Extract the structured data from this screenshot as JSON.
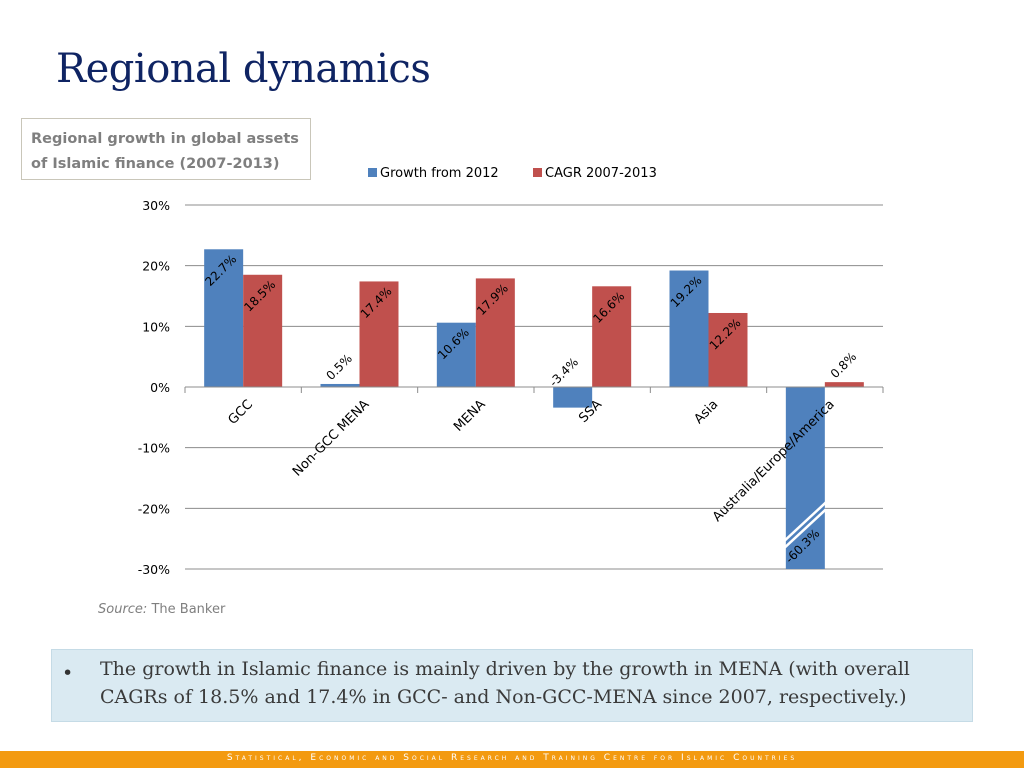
{
  "slide": {
    "title": "Regional dynamics",
    "caption_line1": "Regional growth in global assets",
    "caption_line2": "of Islamic finance (2007-2013)",
    "source_label": "Source:",
    "source_value": " The Banker",
    "note": {
      "bullet": "•",
      "text": "The growth in Islamic finance is mainly driven by the growth in MENA (with overall CAGRs of 18.5% and 17.4% in GCC- and Non-GCC-MENA since 2007, respectively.)"
    },
    "footer": "Statistical, Economic and Social Research and Training Centre for Islamic Countries"
  },
  "chart_data": {
    "type": "bar",
    "title": "Regional growth in global assets of Islamic finance (2007-2013)",
    "xlabel": "",
    "ylabel": "",
    "categories": [
      "GCC",
      "Non-GCC MENA",
      "MENA",
      "SSA",
      "Asia",
      "Australia/Europe/America"
    ],
    "series": [
      {
        "name": "Growth from 2012",
        "color": "#4f81bd",
        "values": [
          22.7,
          0.5,
          10.6,
          -3.4,
          19.2,
          -60.3
        ],
        "labels": [
          "22.7%",
          "0.5%",
          "10.6%",
          "-3.4%",
          "19.2%",
          "-60.3%"
        ]
      },
      {
        "name": "CAGR 2007-2013",
        "color": "#c0504d",
        "values": [
          18.5,
          17.4,
          17.9,
          16.6,
          12.2,
          0.8
        ],
        "labels": [
          "18.5%",
          "17.4%",
          "17.9%",
          "16.6%",
          "12.2%",
          "0.8%"
        ]
      }
    ],
    "ylim": [
      -30,
      30
    ],
    "yticks": [
      30,
      20,
      10,
      0,
      -10,
      -20,
      -30
    ],
    "ytick_labels": [
      "30%",
      "20%",
      "10%",
      "0%",
      "-10%",
      "-20%",
      "-30%"
    ],
    "axis_break": {
      "series": "Growth from 2012",
      "category": "Australia/Europe/America",
      "note": "bar truncated at -30% with break marks"
    },
    "grid": true,
    "legend_position": "top"
  }
}
